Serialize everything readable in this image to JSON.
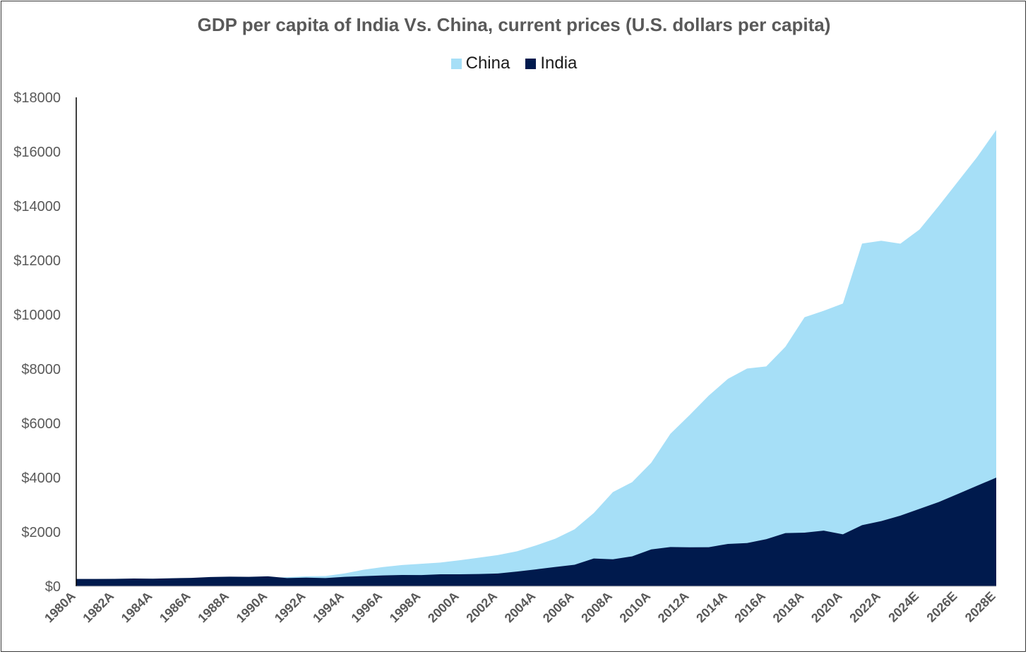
{
  "chart_data": {
    "type": "area",
    "title": "GDP per capita of India Vs. China, current prices (U.S. dollars per capita)",
    "xlabel": "",
    "ylabel": "",
    "ylim": [
      0,
      18000
    ],
    "y_ticks": [
      "$0",
      "$2000",
      "$4000",
      "$6000",
      "$8000",
      "$10000",
      "$12000",
      "$14000",
      "$16000",
      "$18000"
    ],
    "x": [
      "1980A",
      "1981A",
      "1982A",
      "1983A",
      "1984A",
      "1985A",
      "1986A",
      "1987A",
      "1988A",
      "1989A",
      "1990A",
      "1991A",
      "1992A",
      "1993A",
      "1994A",
      "1995A",
      "1996A",
      "1997A",
      "1998A",
      "1999A",
      "2000A",
      "2001A",
      "2002A",
      "2003A",
      "2004A",
      "2005A",
      "2006A",
      "2007A",
      "2008A",
      "2009A",
      "2010A",
      "2011A",
      "2012A",
      "2013A",
      "2014A",
      "2015A",
      "2016A",
      "2017A",
      "2018A",
      "2019A",
      "2020A",
      "2021A",
      "2022A",
      "2023A",
      "2024E",
      "2025E",
      "2026E",
      "2027E",
      "2028E"
    ],
    "x_tick_labels": [
      "1980A",
      "1982A",
      "1984A",
      "1986A",
      "1988A",
      "1990A",
      "1992A",
      "1994A",
      "1996A",
      "1998A",
      "2000A",
      "2002A",
      "2004A",
      "2006A",
      "2008A",
      "2010A",
      "2012A",
      "2014A",
      "2016A",
      "2018A",
      "2020A",
      "2022A",
      "2024E",
      "2026E",
      "2028E"
    ],
    "legend_position": "top-center",
    "grid": false,
    "series": [
      {
        "name": "China",
        "color": "#a6dff7",
        "values": [
          195,
          197,
          203,
          225,
          251,
          294,
          281,
          252,
          284,
          310,
          318,
          333,
          366,
          377,
          473,
          610,
          709,
          782,
          829,
          873,
          959,
          1053,
          1148,
          1288,
          1508,
          1753,
          2099,
          2694,
          3468,
          3832,
          4550,
          5614,
          6301,
          7020,
          7636,
          8016,
          8094,
          8817,
          9905,
          10144,
          10409,
          12618,
          12720,
          12614,
          13136,
          14000,
          14900,
          15800,
          16800
        ]
      },
      {
        "name": "India",
        "color": "#001a4d",
        "values": [
          271,
          271,
          274,
          285,
          280,
          296,
          310,
          340,
          354,
          347,
          368,
          303,
          317,
          301,
          346,
          373,
          400,
          415,
          413,
          441,
          443,
          451,
          470,
          543,
          624,
          710,
          792,
          1022,
          993,
          1102,
          1358,
          1444,
          1434,
          1438,
          1560,
          1590,
          1733,
          1957,
          1974,
          2050,
          1913,
          2250,
          2400,
          2600,
          2850,
          3100,
          3400,
          3700,
          4000
        ]
      }
    ]
  }
}
